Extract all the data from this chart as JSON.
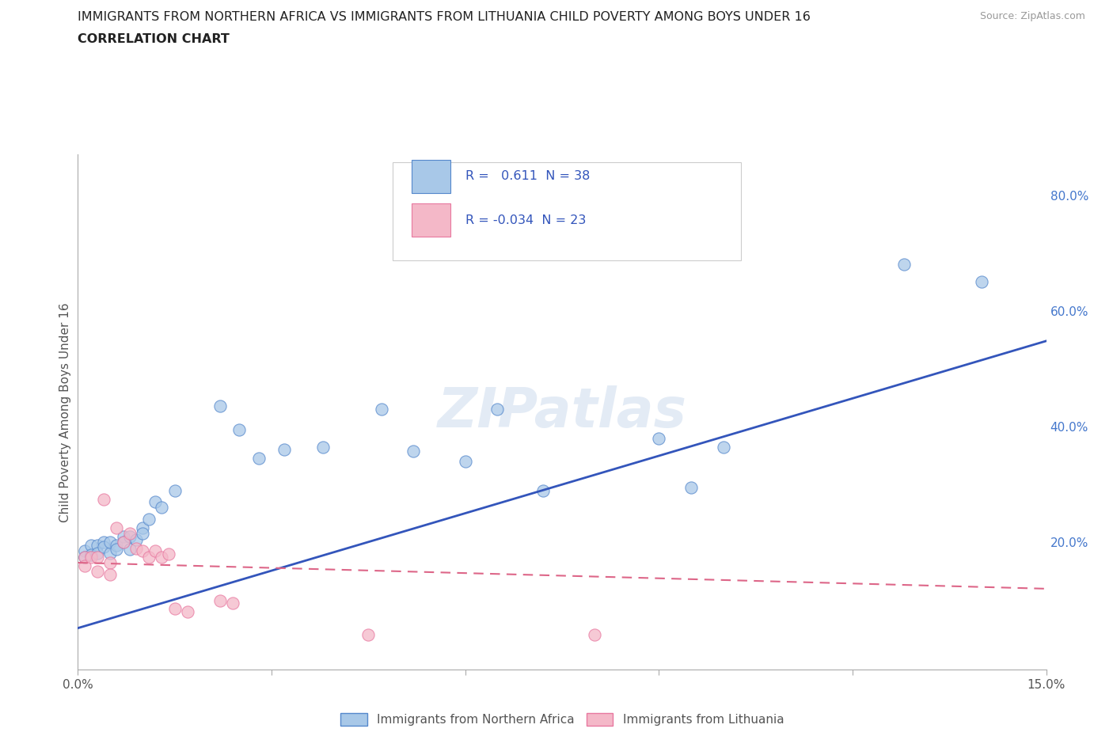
{
  "title_line1": "IMMIGRANTS FROM NORTHERN AFRICA VS IMMIGRANTS FROM LITHUANIA CHILD POVERTY AMONG BOYS UNDER 16",
  "title_line2": "CORRELATION CHART",
  "source_text": "Source: ZipAtlas.com",
  "ylabel": "Child Poverty Among Boys Under 16",
  "xlim": [
    0.0,
    0.15
  ],
  "ylim": [
    -0.02,
    0.87
  ],
  "xticks": [
    0.0,
    0.03,
    0.06,
    0.09,
    0.12,
    0.15
  ],
  "xticklabels": [
    "0.0%",
    "",
    "",
    "",
    "",
    "15.0%"
  ],
  "yticks_right": [
    0.2,
    0.4,
    0.6,
    0.8
  ],
  "ytick_right_labels": [
    "20.0%",
    "40.0%",
    "60.0%",
    "80.0%"
  ],
  "watermark": "ZIPatlas",
  "blue_color": "#a8c8e8",
  "pink_color": "#f4b8c8",
  "blue_edge_color": "#5588cc",
  "pink_edge_color": "#e878a0",
  "blue_line_color": "#3355bb",
  "pink_line_color": "#dd6688",
  "blue_x": [
    0.001,
    0.001,
    0.002,
    0.002,
    0.003,
    0.003,
    0.004,
    0.004,
    0.005,
    0.005,
    0.006,
    0.006,
    0.007,
    0.007,
    0.008,
    0.008,
    0.009,
    0.01,
    0.01,
    0.011,
    0.012,
    0.013,
    0.015,
    0.022,
    0.025,
    0.028,
    0.032,
    0.038,
    0.047,
    0.052,
    0.06,
    0.065,
    0.072,
    0.09,
    0.095,
    0.1,
    0.128,
    0.14
  ],
  "blue_y": [
    0.185,
    0.175,
    0.195,
    0.178,
    0.195,
    0.182,
    0.2,
    0.192,
    0.182,
    0.2,
    0.195,
    0.188,
    0.21,
    0.2,
    0.188,
    0.21,
    0.205,
    0.225,
    0.215,
    0.24,
    0.27,
    0.26,
    0.29,
    0.435,
    0.395,
    0.345,
    0.36,
    0.365,
    0.43,
    0.358,
    0.34,
    0.43,
    0.29,
    0.38,
    0.295,
    0.365,
    0.68,
    0.65
  ],
  "pink_x": [
    0.001,
    0.001,
    0.002,
    0.003,
    0.003,
    0.004,
    0.005,
    0.005,
    0.006,
    0.007,
    0.008,
    0.009,
    0.01,
    0.011,
    0.012,
    0.013,
    0.014,
    0.015,
    0.017,
    0.022,
    0.024,
    0.045,
    0.08
  ],
  "pink_y": [
    0.175,
    0.16,
    0.175,
    0.15,
    0.175,
    0.275,
    0.165,
    0.145,
    0.225,
    0.2,
    0.215,
    0.19,
    0.185,
    0.175,
    0.185,
    0.175,
    0.18,
    0.085,
    0.08,
    0.1,
    0.095,
    0.04,
    0.04
  ],
  "blue_trend_x": [
    0.0,
    0.15
  ],
  "blue_trend_y": [
    0.052,
    0.548
  ],
  "pink_trend_x": [
    0.0,
    0.15
  ],
  "pink_trend_y": [
    0.165,
    0.12
  ],
  "background_color": "#ffffff",
  "grid_color": "#cccccc"
}
